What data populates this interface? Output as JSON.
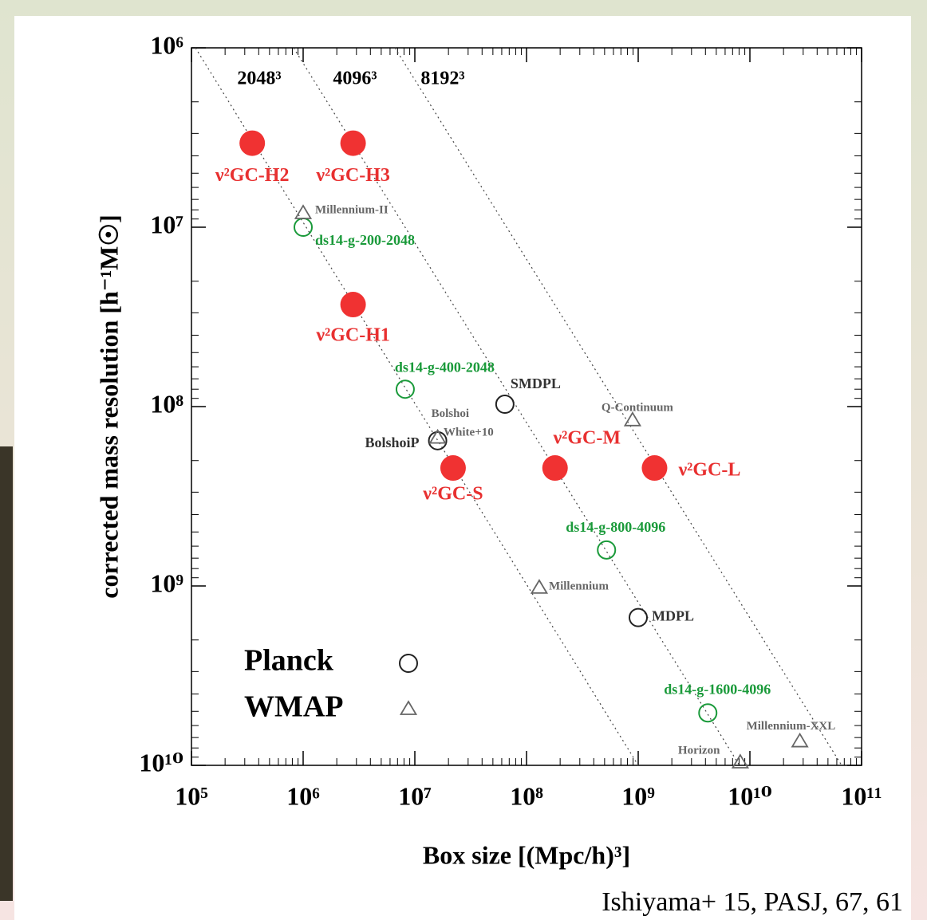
{
  "chart_data": {
    "type": "scatter",
    "x_label": "Box size [(Mpc/h)³]",
    "y_label": "corrected mass resolution [h⁻¹M☉]",
    "x_scale": "log",
    "y_scale": "log",
    "y_inverted": true,
    "xlim": [
      100000,
      100000000000
    ],
    "ylim": [
      1000000,
      10000000000
    ],
    "xticks": [
      {
        "value": 100000,
        "label": "10⁵"
      },
      {
        "value": 1000000,
        "label": "10⁶"
      },
      {
        "value": 10000000,
        "label": "10⁷"
      },
      {
        "value": 100000000,
        "label": "10⁸"
      },
      {
        "value": 1000000000,
        "label": "10⁹"
      },
      {
        "value": 10000000000,
        "label": "10¹⁰"
      },
      {
        "value": 100000000000,
        "label": "10¹¹"
      }
    ],
    "yticks": [
      {
        "value": 1000000,
        "label": "10⁶"
      },
      {
        "value": 10000000,
        "label": "10⁷"
      },
      {
        "value": 100000000,
        "label": "10⁸"
      },
      {
        "value": 1000000000,
        "label": "10⁹"
      },
      {
        "value": 10000000000,
        "label": "10¹⁰"
      }
    ],
    "particle_lines": [
      "2048³",
      "4096³",
      "8192³"
    ],
    "series": [
      {
        "marker": "filled-circle",
        "color": "#f03232",
        "x": [
          350000,
          2800000,
          2800000,
          22000000,
          180000000,
          1400000000
        ],
        "values": [
          3400000,
          3400000,
          27000000,
          220000000,
          220000000,
          220000000
        ],
        "labels": [
          "ν²GC-H2",
          "ν²GC-H3",
          "ν²GC-H1",
          "ν²GC-S",
          "ν²GC-M",
          "ν²GC-L"
        ],
        "label_colors": [
          "#e83030",
          "#e83030",
          "#e83030",
          "#e83030",
          "#e83030",
          "#e83030"
        ]
      },
      {
        "name": "Planck",
        "marker": "circle",
        "color": "#222222",
        "x": [
          1000000,
          8200000,
          64000000,
          16000000,
          520000000,
          1000000000,
          4200000000
        ],
        "values": [
          10000000,
          80000000,
          97000000,
          155000000,
          630000000,
          1500000000,
          5100000000
        ],
        "labels": [
          "ds14-g-200-2048",
          "ds14-g-400-2048",
          "SMDPL",
          "BolshoiP",
          "ds14-g-800-4096",
          "MDPL",
          "ds14-g-1600-4096"
        ],
        "colors": [
          "#1a9a3a",
          "#1a9a3a",
          "#222222",
          "#222222",
          "#1a9a3a",
          "#222222",
          "#1a9a3a"
        ],
        "label_colors": [
          "#1a9a3a",
          "#1a9a3a",
          "#333333",
          "#333333",
          "#1a9a3a",
          "#333333",
          "#1a9a3a"
        ]
      },
      {
        "name": "WMAP",
        "marker": "triangle",
        "color": "#666666",
        "x": [
          1000000,
          16000000,
          890000000,
          130000000,
          8200000000,
          28000000000
        ],
        "values": [
          8400000,
          150000000,
          120000000,
          1030000000,
          9700000000,
          7400000000
        ],
        "labels": [
          "Millennium-II",
          "Bolshoi",
          "Q-Continuum",
          "Millennium",
          "Horizon",
          "Millennium-XXL"
        ],
        "label_colors": [
          "#666666",
          "#666666",
          "#666666",
          "#666666",
          "#666666",
          "#666666"
        ]
      }
    ],
    "annotation": "White+10",
    "citation": "Ishiyama+ 15, PASJ, 67, 61"
  }
}
